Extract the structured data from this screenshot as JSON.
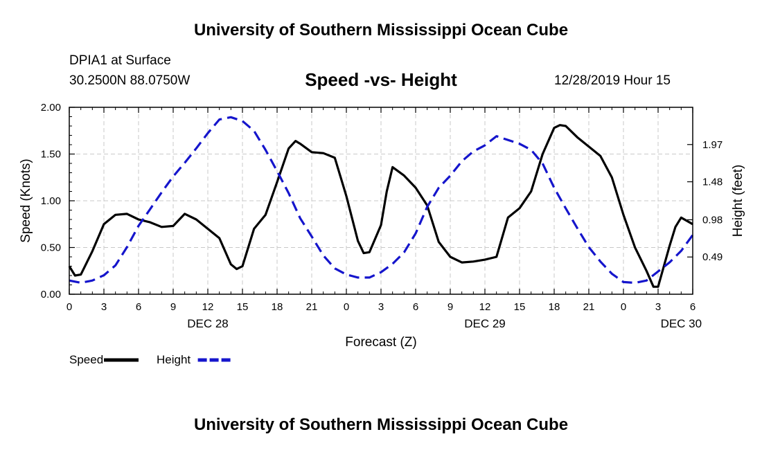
{
  "header": {
    "title": "University of Southern Mississippi Ocean Cube",
    "station": "DPIA1 at Surface",
    "coords": "30.2500N 88.0750W",
    "subtitle": "Speed -vs- Height",
    "datetime": "12/28/2019 Hour 15"
  },
  "footer": {
    "title": "University of Southern Mississippi Ocean Cube"
  },
  "chart_data": {
    "type": "line",
    "title": "Speed -vs- Height",
    "xlabel": "Forecast (Z)",
    "ylabel": "Speed (Knots)",
    "y2label": "Height (feet)",
    "x_range": [
      0,
      54
    ],
    "ylim": [
      0,
      2.0
    ],
    "y2lim": [
      0,
      2.46
    ],
    "x_ticks": [
      0,
      3,
      6,
      9,
      12,
      15,
      18,
      21,
      24,
      27,
      30,
      33,
      36,
      39,
      42,
      45,
      48,
      51,
      54
    ],
    "x_tick_labels": [
      "0",
      "3",
      "6",
      "9",
      "12",
      "15",
      "18",
      "21",
      "0",
      "3",
      "6",
      "9",
      "12",
      "15",
      "18",
      "21",
      "0",
      "3",
      "6"
    ],
    "date_labels": [
      {
        "x": 12,
        "label": "DEC 28"
      },
      {
        "x": 36,
        "label": "DEC 29"
      },
      {
        "x": 53,
        "label": "DEC 30"
      }
    ],
    "y_ticks": [
      0.0,
      0.5,
      1.0,
      1.5,
      2.0
    ],
    "y_tick_labels": [
      "0.00",
      "0.50",
      "1.00",
      "1.50",
      "2.00"
    ],
    "y2_ticks": [
      0.49,
      0.98,
      1.48,
      1.97
    ],
    "y2_tick_labels": [
      "0.49",
      "0.98",
      "1.48",
      "1.97"
    ],
    "grid": true,
    "series": [
      {
        "name": "Speed",
        "axis": "left",
        "color": "#000000",
        "dash": "solid",
        "x": [
          0,
          0.5,
          1,
          2,
          3,
          4,
          5,
          6,
          7,
          8,
          9,
          10,
          11,
          12,
          13,
          14,
          14.5,
          15,
          16,
          17,
          18,
          19,
          19.6,
          20,
          21,
          22,
          23,
          24,
          25,
          25.5,
          26,
          27,
          27.5,
          28,
          29,
          30,
          31,
          32,
          33,
          34,
          35,
          36,
          37,
          38,
          39,
          40,
          41,
          42,
          42.5,
          43,
          44,
          45,
          46,
          47,
          48,
          49,
          50,
          50.6,
          51,
          52,
          52.5,
          53,
          54
        ],
        "values": [
          0.3,
          0.2,
          0.21,
          0.46,
          0.75,
          0.85,
          0.86,
          0.8,
          0.77,
          0.72,
          0.73,
          0.86,
          0.8,
          0.7,
          0.6,
          0.32,
          0.27,
          0.3,
          0.7,
          0.85,
          1.2,
          1.56,
          1.64,
          1.61,
          1.52,
          1.51,
          1.46,
          1.05,
          0.57,
          0.44,
          0.45,
          0.74,
          1.1,
          1.36,
          1.27,
          1.14,
          0.95,
          0.56,
          0.4,
          0.34,
          0.35,
          0.37,
          0.4,
          0.82,
          0.92,
          1.1,
          1.5,
          1.78,
          1.81,
          1.8,
          1.68,
          1.58,
          1.48,
          1.25,
          0.85,
          0.5,
          0.25,
          0.08,
          0.08,
          0.52,
          0.72,
          0.82,
          0.75
        ]
      },
      {
        "name": "Height",
        "axis": "right",
        "color": "#1515cc",
        "dash": "dashed",
        "x": [
          0,
          1,
          2,
          3,
          4,
          5,
          6,
          7,
          8,
          9,
          10,
          11,
          12,
          13,
          14,
          15,
          16,
          17,
          18,
          19,
          20,
          21,
          22,
          23,
          24,
          25,
          26,
          27,
          28,
          29,
          30,
          31,
          32,
          33,
          34,
          35,
          36,
          37,
          38,
          39,
          40,
          41,
          42,
          43,
          44,
          45,
          46,
          47,
          48,
          49,
          50,
          51,
          52,
          53,
          54
        ],
        "values": [
          0.18,
          0.15,
          0.18,
          0.25,
          0.38,
          0.62,
          0.9,
          1.12,
          1.34,
          1.55,
          1.73,
          1.92,
          2.12,
          2.3,
          2.33,
          2.28,
          2.15,
          1.9,
          1.62,
          1.33,
          1.0,
          0.76,
          0.51,
          0.34,
          0.26,
          0.22,
          0.22,
          0.29,
          0.4,
          0.55,
          0.8,
          1.15,
          1.4,
          1.56,
          1.75,
          1.88,
          1.96,
          2.08,
          2.03,
          1.98,
          1.9,
          1.72,
          1.4,
          1.13,
          0.87,
          0.62,
          0.43,
          0.27,
          0.16,
          0.15,
          0.18,
          0.3,
          0.42,
          0.57,
          0.78
        ]
      }
    ]
  }
}
